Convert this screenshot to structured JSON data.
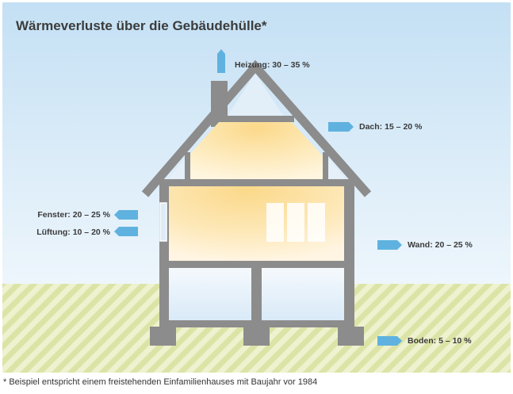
{
  "title": "Wärmeverluste über die Gebäudehülle*",
  "losses": [
    {
      "id": "heizung",
      "label": "Heizung: 30 – 35 %"
    },
    {
      "id": "dach",
      "label": "Dach: 15 – 20 %"
    },
    {
      "id": "fenster",
      "label": "Fenster: 20 – 25 %"
    },
    {
      "id": "lueftung",
      "label": "Lüftung: 10 – 20 %"
    },
    {
      "id": "wand",
      "label": "Wand: 20 – 25 %"
    },
    {
      "id": "boden",
      "label": "Boden: 5 – 10 %"
    }
  ],
  "footnote": "* Beispiel entspricht einem freistehenden Einfamilienhauses mit Baujahr vor 1984",
  "colors": {
    "sky": "#cfe6f5",
    "ground": "#e9efc4",
    "ground_stripe": "#d7e29c",
    "house": "#8c8c8c",
    "interior_warm": "#fde3a4",
    "interior_cold": "#eaf2fb",
    "arrow": "#5fb2df"
  }
}
